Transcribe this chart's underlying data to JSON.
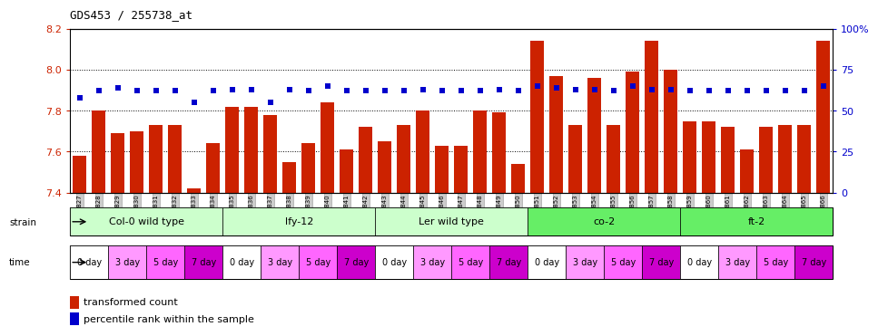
{
  "title": "GDS453 / 255738_at",
  "samples": [
    "GSM8827",
    "GSM8828",
    "GSM8829",
    "GSM8830",
    "GSM8831",
    "GSM8832",
    "GSM8833",
    "GSM8834",
    "GSM8835",
    "GSM8836",
    "GSM8837",
    "GSM8838",
    "GSM8839",
    "GSM8840",
    "GSM8841",
    "GSM8842",
    "GSM8843",
    "GSM8844",
    "GSM8845",
    "GSM8846",
    "GSM8847",
    "GSM8848",
    "GSM8849",
    "GSM8850",
    "GSM8851",
    "GSM8852",
    "GSM8853",
    "GSM8854",
    "GSM8855",
    "GSM8856",
    "GSM8857",
    "GSM8858",
    "GSM8859",
    "GSM8860",
    "GSM8861",
    "GSM8862",
    "GSM8863",
    "GSM8864",
    "GSM8865",
    "GSM8866"
  ],
  "red_values": [
    7.58,
    7.8,
    7.69,
    7.7,
    7.73,
    7.73,
    7.42,
    7.64,
    7.82,
    7.82,
    7.78,
    7.55,
    7.64,
    7.84,
    7.61,
    7.72,
    7.65,
    7.73,
    7.8,
    7.63,
    7.63,
    7.8,
    7.79,
    7.54,
    8.14,
    7.97,
    7.73,
    7.96,
    7.73,
    7.99,
    8.14,
    8.0,
    7.75,
    7.75,
    7.72,
    7.61,
    7.72,
    7.73,
    7.73,
    8.14
  ],
  "blue_values": [
    58,
    62,
    64,
    62,
    62,
    62,
    55,
    62,
    63,
    63,
    55,
    63,
    62,
    65,
    62,
    62,
    62,
    62,
    63,
    62,
    62,
    62,
    63,
    62,
    65,
    64,
    63,
    63,
    62,
    65,
    63,
    63,
    62,
    62,
    62,
    62,
    62,
    62,
    62,
    65
  ],
  "ylim": [
    7.4,
    8.2
  ],
  "yticks": [
    7.4,
    7.6,
    7.8,
    8.0,
    8.2
  ],
  "right_ylim": [
    0,
    100
  ],
  "right_yticks": [
    0,
    25,
    50,
    75,
    100
  ],
  "right_yticklabels": [
    "0",
    "25",
    "50",
    "75",
    "100%"
  ],
  "bar_color": "#CC2200",
  "dot_color": "#0000CC",
  "strains": [
    {
      "label": "Col-0 wild type",
      "start": 0,
      "end": 8,
      "color": "#CCFFCC"
    },
    {
      "label": "lfy-12",
      "start": 8,
      "end": 16,
      "color": "#CCFFCC"
    },
    {
      "label": "Ler wild type",
      "start": 16,
      "end": 24,
      "color": "#CCFFCC"
    },
    {
      "label": "co-2",
      "start": 24,
      "end": 32,
      "color": "#66EE66"
    },
    {
      "label": "ft-2",
      "start": 32,
      "end": 40,
      "color": "#66EE66"
    }
  ],
  "time_labels": [
    "0 day",
    "3 day",
    "5 day",
    "7 day"
  ],
  "time_colors": [
    "#FFFFFF",
    "#FF99FF",
    "#FF66FF",
    "#CC00CC"
  ],
  "bg_color": "#FFFFFF",
  "title_color": "#000000",
  "left_axis_color": "#CC2200",
  "right_axis_color": "#0000CC",
  "tick_bg_color": "#CCCCCC"
}
